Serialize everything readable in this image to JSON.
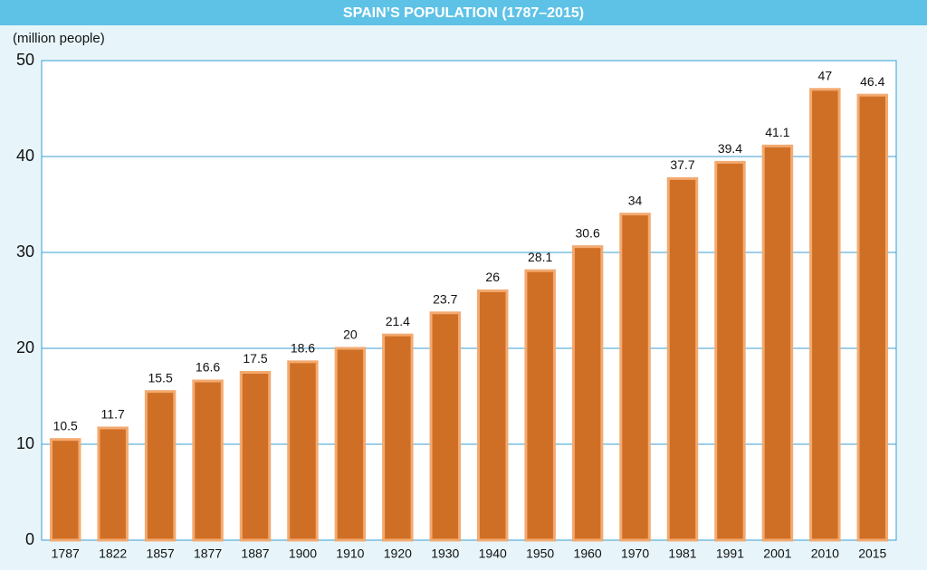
{
  "chart_data": {
    "type": "bar",
    "title": "SPAIN’S POPULATION (1787–2015)",
    "y_axis_label": "(million people)",
    "categories": [
      "1787",
      "1822",
      "1857",
      "1877",
      "1887",
      "1900",
      "1910",
      "1920",
      "1930",
      "1940",
      "1950",
      "1960",
      "1970",
      "1981",
      "1991",
      "2001",
      "2010",
      "2015"
    ],
    "values": [
      10.5,
      11.7,
      15.5,
      16.6,
      17.5,
      18.6,
      20,
      21.4,
      23.7,
      26,
      28.1,
      30.6,
      34,
      37.7,
      39.4,
      41.1,
      47,
      46.4
    ],
    "color": "#cf6f26",
    "ylim": [
      0,
      50
    ],
    "yticks": [
      0,
      10,
      20,
      30,
      40,
      50
    ],
    "grid": true
  }
}
